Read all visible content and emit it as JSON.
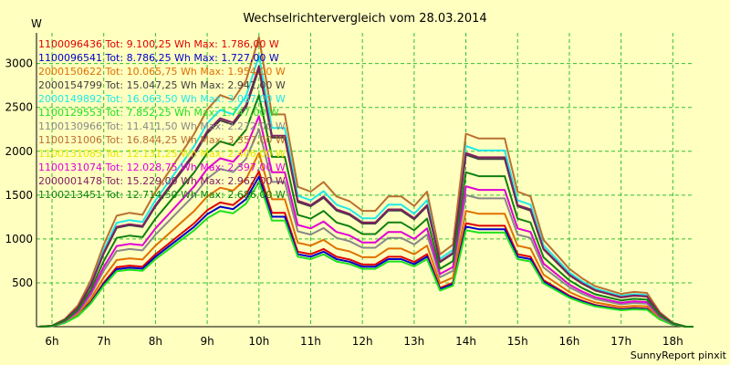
{
  "chart_data": {
    "type": "line",
    "title": "Wechselrichtervergleich vom 28.03.2014",
    "ylabel": "W",
    "xlabel": "",
    "credit": "SunnyReport pinxit",
    "ylim": [
      0,
      3350
    ],
    "xlim": [
      5.7,
      18.4
    ],
    "yticks": [
      500,
      1000,
      1500,
      2000,
      2500,
      3000
    ],
    "xticks": [
      {
        "value": 6,
        "label": "6h"
      },
      {
        "value": 7,
        "label": "7h"
      },
      {
        "value": 8,
        "label": "8h"
      },
      {
        "value": 9,
        "label": "9h"
      },
      {
        "value": 10,
        "label": "10h"
      },
      {
        "value": 11,
        "label": "11h"
      },
      {
        "value": 12,
        "label": "12h"
      },
      {
        "value": 13,
        "label": "13h"
      },
      {
        "value": 14,
        "label": "14h"
      },
      {
        "value": 15,
        "label": "15h"
      },
      {
        "value": 16,
        "label": "16h"
      },
      {
        "value": 17,
        "label": "17h"
      },
      {
        "value": 18,
        "label": "18h"
      }
    ],
    "grid": true,
    "legend_position": "top-left",
    "x": [
      5.75,
      6.0,
      6.25,
      6.5,
      6.75,
      7.0,
      7.25,
      7.5,
      7.75,
      8.0,
      8.25,
      8.5,
      8.75,
      9.0,
      9.25,
      9.5,
      9.75,
      10.0,
      10.25,
      10.5,
      10.75,
      11.0,
      11.25,
      11.5,
      11.75,
      12.0,
      12.25,
      12.5,
      12.75,
      13.0,
      13.25,
      13.5,
      13.75,
      14.0,
      14.25,
      14.5,
      14.75,
      15.0,
      15.25,
      15.5,
      15.75,
      16.0,
      16.25,
      16.5,
      16.75,
      17.0,
      17.25,
      17.5,
      17.75,
      18.0,
      18.25,
      18.4
    ],
    "series": [
      {
        "name": "1100096436 Tot: 9.100,25 Wh Max: 1.786,00 W",
        "color": "#e00000",
        "weight": 0.59
      },
      {
        "name": "1100096541 Tot: 8.786,25 Wh Max: 1.727,00 W",
        "color": "#0000c8",
        "weight": 0.57
      },
      {
        "name": "2000150622 Tot: 10.065,75 Wh Max: 1.954,00 W",
        "color": "#e07000",
        "weight": 0.66
      },
      {
        "name": "2000154799 Tot: 15.047,25 Wh Max: 2.941,00 W",
        "color": "#404040",
        "weight": 0.98
      },
      {
        "name": "2000149892 Tot: 16.063,50 Wh Max: 3.087,00 W",
        "color": "#20e8e8",
        "weight": 1.03
      },
      {
        "name": "1100129553 Tot: 7.852,25 Wh Max: 1.747,00 W",
        "color": "#20e020",
        "weight": 0.55
      },
      {
        "name": "1100130966 Tot: 11.411,50 Wh Max: 2.272,00 W",
        "color": "#888888",
        "weight": 0.75
      },
      {
        "name": "1100131006 Tot: 16.844,25 Wh Max: 3.357,00 W",
        "color": "#b87030",
        "weight": 1.1
      },
      {
        "name": "1100131085 Tot: 12.131,25 Wh Max: 2.406,00 W",
        "color": "#e8e800",
        "weight": 0.8
      },
      {
        "name": "1100131074 Tot: 12.028,75 Wh Max: 2.397,00 W",
        "color": "#e000e0",
        "weight": 0.8
      },
      {
        "name": "2000001478 Tot: 15.229,00 Wh Max: 2.962,00 W",
        "color": "#802060",
        "weight": 0.99
      },
      {
        "name": "1100213451 Tot: 12.714,50 Wh Max: 2.686,00 W",
        "color": "#108010",
        "weight": 0.88
      }
    ],
    "base_profile": [
      0,
      10,
      80,
      220,
      480,
      850,
      1150,
      1180,
      1160,
      1400,
      1600,
      1800,
      2000,
      2250,
      2400,
      2350,
      2550,
      3000,
      2200,
      2200,
      1450,
      1400,
      1500,
      1350,
      1300,
      1200,
      1200,
      1350,
      1350,
      1250,
      1400,
      750,
      850,
      2000,
      1950,
      1950,
      1950,
      1400,
      1350,
      900,
      750,
      600,
      500,
      420,
      380,
      340,
      360,
      350,
      150,
      40,
      0,
      0
    ],
    "colors": {
      "background": "#ffffc0",
      "grid": "#30c030",
      "axis": "#000000"
    }
  }
}
